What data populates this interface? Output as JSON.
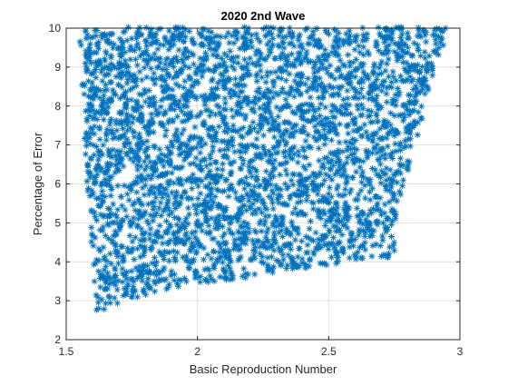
{
  "chart_data": {
    "type": "scatter",
    "title": "2020 2nd Wave",
    "xlabel": "Basic Reproduction Number",
    "ylabel": "Percentage of Error",
    "xlim": [
      1.5,
      3
    ],
    "ylim": [
      2,
      10
    ],
    "xticks": [
      1.5,
      2,
      2.5,
      3
    ],
    "xtick_labels": [
      "1.5",
      "2",
      "2.5",
      "3"
    ],
    "yticks": [
      2,
      3,
      4,
      5,
      6,
      7,
      8,
      9,
      10
    ],
    "ytick_labels": [
      "2",
      "3",
      "4",
      "5",
      "6",
      "7",
      "8",
      "9",
      "10"
    ],
    "grid": true,
    "marker": "*",
    "marker_color": "#0072BD",
    "series": [
      {
        "lower_boundary": [
          [
            1.58,
            4.1
          ],
          [
            1.59,
            3.7
          ],
          [
            1.6,
            3.1
          ],
          [
            1.61,
            2.75
          ],
          [
            1.63,
            2.72
          ],
          [
            1.68,
            2.85
          ],
          [
            1.75,
            3.05
          ],
          [
            1.85,
            3.25
          ],
          [
            2.0,
            3.45
          ],
          [
            2.2,
            3.6
          ],
          [
            2.4,
            3.82
          ],
          [
            2.6,
            4.02
          ],
          [
            2.75,
            4.12
          ]
        ],
        "left_edge": [
          [
            1.55,
            9.8
          ],
          [
            1.56,
            9.0
          ],
          [
            1.56,
            8.0
          ],
          [
            1.57,
            7.0
          ],
          [
            1.58,
            6.0
          ],
          [
            1.59,
            5.0
          ],
          [
            1.6,
            4.2
          ],
          [
            1.61,
            2.75
          ]
        ],
        "right_boundary": [
          [
            2.75,
            4.12
          ],
          [
            2.75,
            4.6
          ],
          [
            2.76,
            5.2
          ],
          [
            2.78,
            5.8
          ],
          [
            2.8,
            6.3
          ],
          [
            2.83,
            7.0
          ],
          [
            2.86,
            7.8
          ],
          [
            2.89,
            8.6
          ],
          [
            2.92,
            9.2
          ],
          [
            2.96,
            9.9
          ]
        ],
        "upper_edge": 10
      }
    ]
  }
}
